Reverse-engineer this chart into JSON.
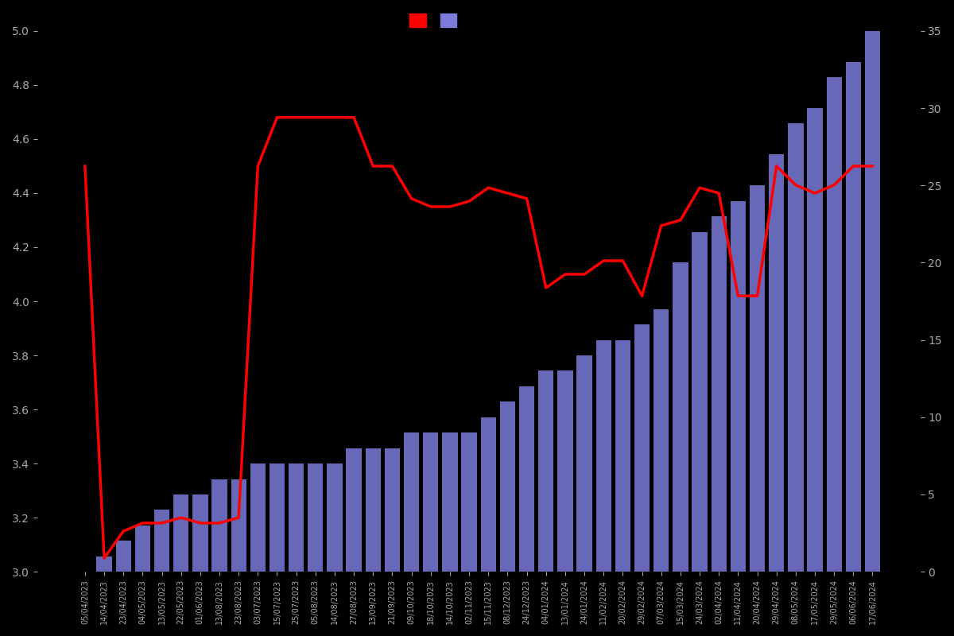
{
  "dates": [
    "05/04/2023",
    "14/04/2023",
    "23/04/2023",
    "04/05/2023",
    "13/05/2023",
    "22/05/2023",
    "01/06/2023",
    "13/08/2023",
    "23/08/2023",
    "03/07/2023",
    "15/07/2023",
    "25/07/2023",
    "05/08/2023",
    "14/08/2023",
    "27/08/2023",
    "13/09/2023",
    "21/09/2023",
    "09/10/2023",
    "18/10/2023",
    "14/10/2023",
    "02/11/2023",
    "15/11/2023",
    "08/12/2023",
    "24/12/2023",
    "04/01/2024",
    "13/01/2024",
    "24/01/2024",
    "11/02/2024",
    "20/02/2024",
    "29/02/2024",
    "07/03/2024",
    "15/03/2024",
    "24/03/2024",
    "02/04/2024",
    "11/04/2024",
    "20/04/2024",
    "29/04/2024",
    "08/05/2024",
    "17/05/2024",
    "29/05/2024",
    "06/06/2024",
    "17/06/2024"
  ],
  "bar_values": [
    0,
    1,
    2,
    3,
    4,
    5,
    5,
    6,
    6,
    7,
    7,
    7,
    7,
    7,
    8,
    8,
    8,
    9,
    9,
    9,
    9,
    10,
    11,
    12,
    13,
    13,
    14,
    15,
    15,
    16,
    17,
    20,
    22,
    23,
    24,
    25,
    27,
    29,
    30,
    32,
    33,
    35
  ],
  "line_values": [
    4.5,
    3.05,
    3.15,
    3.18,
    3.18,
    3.2,
    3.18,
    3.18,
    3.2,
    4.5,
    4.68,
    4.68,
    4.68,
    4.68,
    4.68,
    4.5,
    4.5,
    4.38,
    4.35,
    4.35,
    4.37,
    4.42,
    4.4,
    4.38,
    4.05,
    4.1,
    4.1,
    4.15,
    4.15,
    4.02,
    4.28,
    4.3,
    4.42,
    4.4,
    4.02,
    4.02,
    4.5,
    4.43,
    4.4,
    4.43,
    4.5,
    4.5
  ],
  "background_color": "#000000",
  "bar_color": "#7b7bdb",
  "line_color": "#ff0000",
  "left_ylim": [
    3.0,
    5.0
  ],
  "right_ylim": [
    0,
    35
  ],
  "left_yticks": [
    3.0,
    3.2,
    3.4,
    3.6,
    3.8,
    4.0,
    4.2,
    4.4,
    4.6,
    4.8,
    5.0
  ],
  "right_yticks": [
    0,
    5,
    10,
    15,
    20,
    25,
    30,
    35
  ],
  "text_color": "#aaaaaa"
}
